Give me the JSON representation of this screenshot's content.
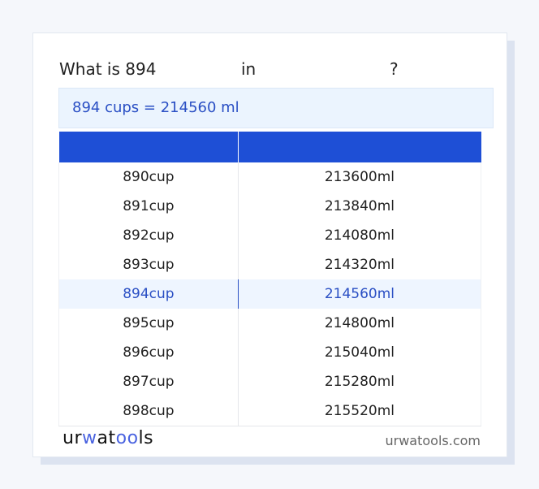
{
  "title": {
    "prefix": "What is 894",
    "in": "in",
    "q": "?"
  },
  "result": "894 cups = 214560 ml",
  "table": {
    "headers": [
      "",
      ""
    ],
    "rows": [
      {
        "from": "890cup",
        "to": "213600ml"
      },
      {
        "from": "891cup",
        "to": "213840ml"
      },
      {
        "from": "892cup",
        "to": "214080ml"
      },
      {
        "from": "893cup",
        "to": "214320ml"
      },
      {
        "from": "894cup",
        "to": "214560ml",
        "highlight": true
      },
      {
        "from": "895cup",
        "to": "214800ml"
      },
      {
        "from": "896cup",
        "to": "215040ml"
      },
      {
        "from": "897cup",
        "to": "215280ml"
      },
      {
        "from": "898cup",
        "to": "215520ml"
      }
    ]
  },
  "footer": {
    "logo": "urwatools",
    "site": "urwatools.com"
  },
  "colors": {
    "header": "#1e4fd6",
    "accent": "#2a4fc4",
    "highlight_bg": "#eef5ff"
  }
}
